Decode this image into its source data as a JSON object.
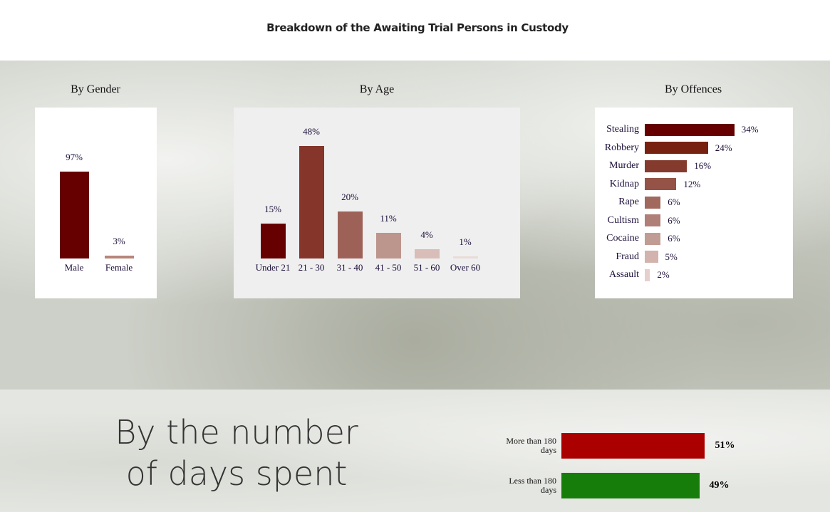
{
  "title": "Breakdown of the Awaiting Trial Persons in Custody",
  "chart_data": [
    {
      "type": "bar",
      "title": "By Gender",
      "categories": [
        "Male",
        "Female"
      ],
      "values": [
        97,
        3
      ],
      "value_labels": [
        "97%",
        "3%"
      ],
      "colors": [
        "#660000",
        "#b8857a"
      ]
    },
    {
      "type": "bar",
      "title": "By Age",
      "categories": [
        "Under 21",
        "21 - 30",
        "31 - 40",
        "41 - 50",
        "51 - 60",
        "Over 60"
      ],
      "values": [
        15,
        48,
        20,
        11,
        4,
        1
      ],
      "value_labels": [
        "15%",
        "48%",
        "20%",
        "11%",
        "4%",
        "1%"
      ],
      "colors": [
        "#660000",
        "#85352a",
        "#9e6158",
        "#bc958d",
        "#d9bdb8",
        "#e8dcd9"
      ]
    },
    {
      "type": "barh",
      "title": "By Offences",
      "categories": [
        "Stealing",
        "Robbery",
        "Murder",
        "Kidnap",
        "Rape",
        "Cultism",
        "Cocaine",
        "Fraud",
        "Assault"
      ],
      "values": [
        34,
        24,
        16,
        12,
        6,
        6,
        6,
        5,
        2
      ],
      "value_labels": [
        "34%",
        "24%",
        "16%",
        "12%",
        "6%",
        "6%",
        "6%",
        "5%",
        "2%"
      ],
      "colors": [
        "#660000",
        "#772211",
        "#843b2d",
        "#945346",
        "#a1685e",
        "#b07f77",
        "#c09c94",
        "#d2b3ad",
        "#e6cfcc"
      ]
    },
    {
      "type": "barh",
      "title": "By the number of days spent",
      "categories": [
        "More than 180 days",
        "Less than 180 days"
      ],
      "values": [
        51,
        49
      ],
      "value_labels": [
        "51%",
        "49%"
      ],
      "colors": [
        "#aa0000",
        "#177d0a"
      ]
    }
  ]
}
